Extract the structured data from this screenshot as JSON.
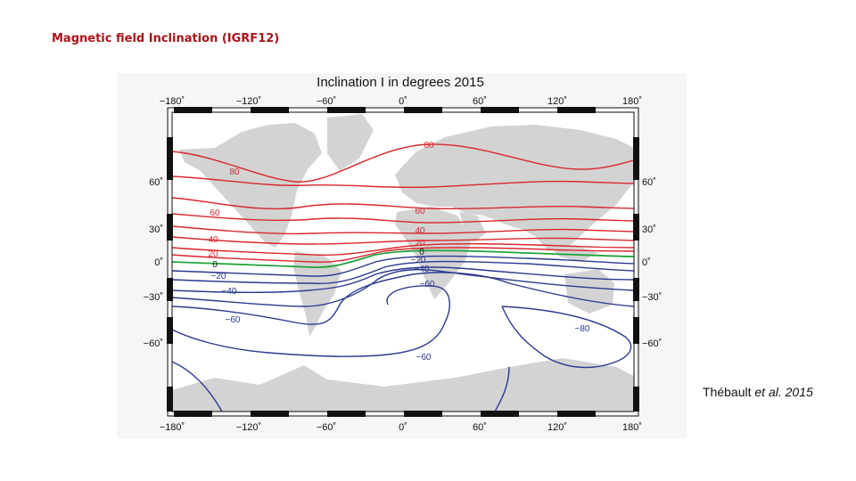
{
  "slide": {
    "title": "Magnetic field Inclination (IGRF12)",
    "citation_author": "Thébault",
    "citation_etal": "et al.",
    "citation_year": "2015"
  },
  "map": {
    "title": "Inclination I in degrees 2015",
    "top_ticks": [
      "−180˚",
      "−120˚",
      "−60˚",
      "0˚",
      "60˚",
      "120˚",
      "180˚"
    ],
    "bottom_ticks": [
      "−180˚",
      "−120˚",
      "−60˚",
      "0˚",
      "60˚",
      "120˚",
      "180˚"
    ],
    "left_ticks": [
      "60˚",
      "30˚",
      "0˚",
      "−30˚",
      "−60˚"
    ],
    "right_ticks": [
      "60˚",
      "30˚",
      "0˚",
      "−30˚",
      "−60˚"
    ],
    "contour_labels": [
      "80",
      "80",
      "60",
      "60",
      "40",
      "40",
      "20",
      "20",
      "0",
      "0",
      "−20",
      "−20",
      "−40",
      "−40",
      "−60",
      "−60",
      "−60",
      "−80"
    ],
    "colors": {
      "positive": "#d9272e",
      "zero": "#23a33c",
      "negative": "#2b3990",
      "land": "#d3d3d3",
      "ocean": "#ffffff"
    }
  }
}
